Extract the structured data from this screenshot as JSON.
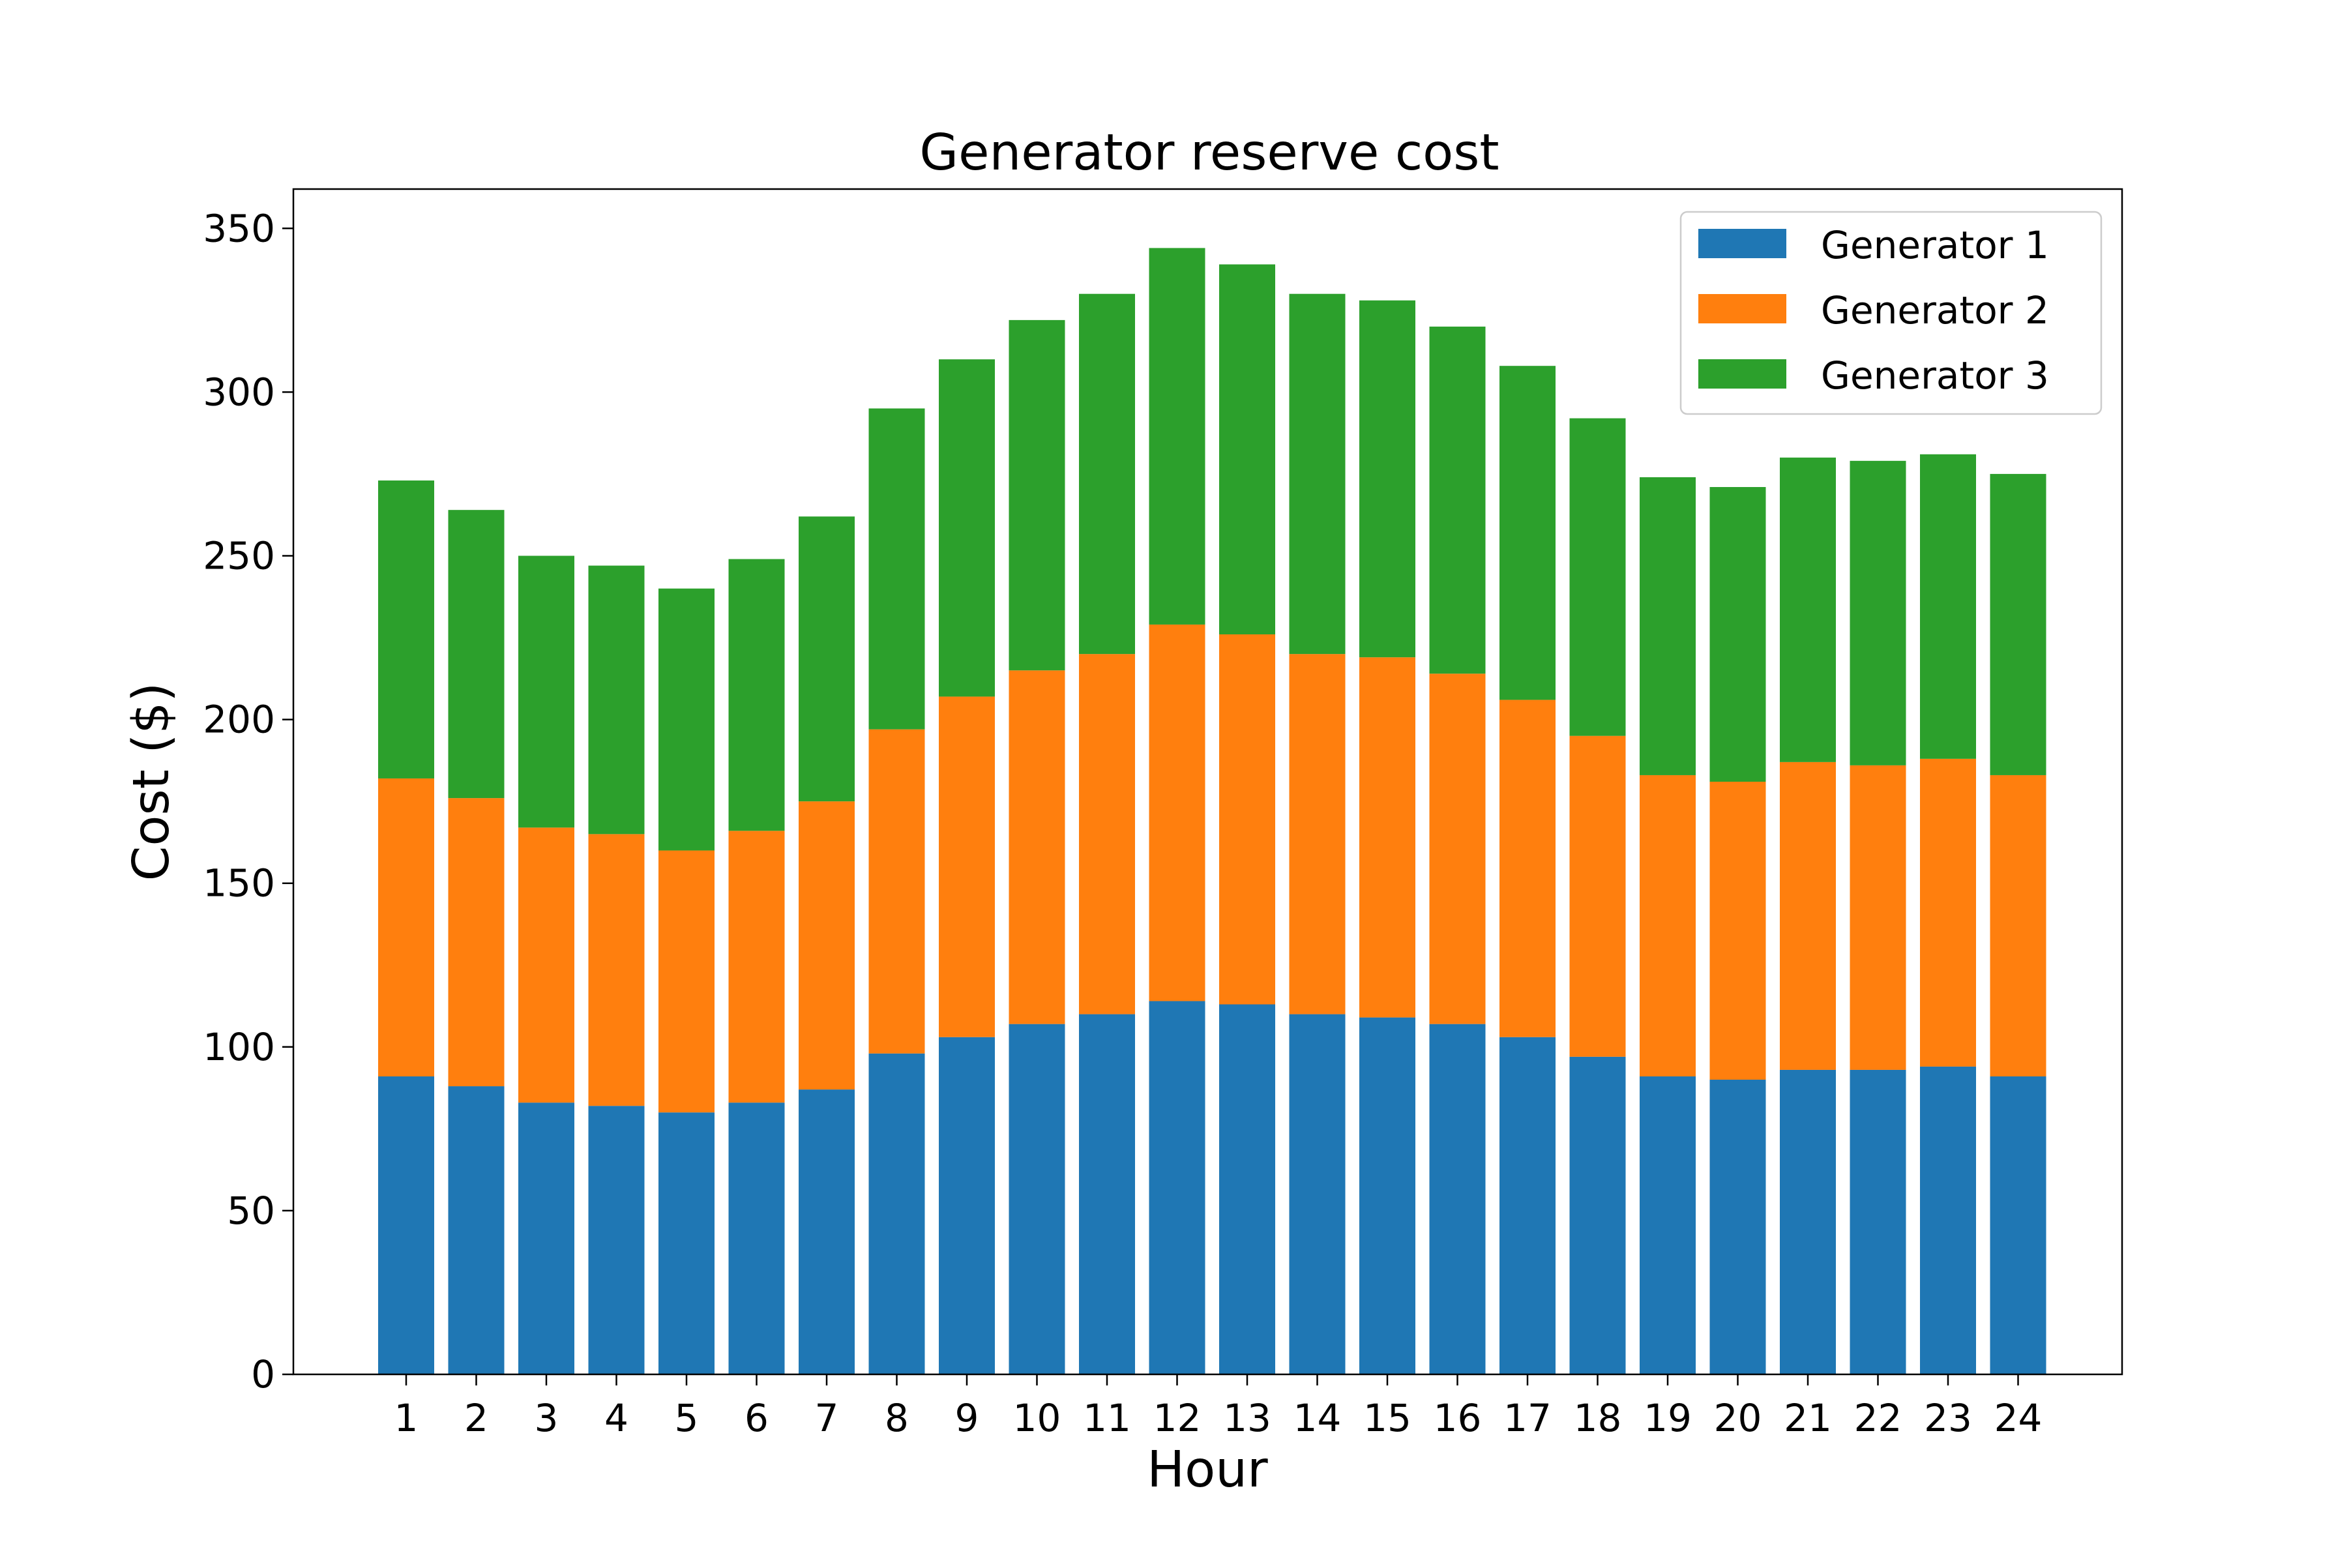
{
  "chart_data": {
    "type": "bar",
    "stacked": true,
    "title": "Generator reserve cost",
    "xlabel": "Hour",
    "ylabel": "Cost ($)",
    "categories": [
      "1",
      "2",
      "3",
      "4",
      "5",
      "6",
      "7",
      "8",
      "9",
      "10",
      "11",
      "12",
      "13",
      "14",
      "15",
      "16",
      "17",
      "18",
      "19",
      "20",
      "21",
      "22",
      "23",
      "24"
    ],
    "ylim": [
      0,
      362
    ],
    "yticks": [
      "0",
      "50",
      "100",
      "150",
      "200",
      "250",
      "300",
      "350"
    ],
    "grid": false,
    "legend_position": "top-right",
    "series": [
      {
        "name": "Generator 1",
        "color": "#1f77b4",
        "values": [
          91,
          88,
          83,
          82,
          80,
          83,
          87,
          98,
          103,
          107,
          110,
          114,
          113,
          110,
          109,
          107,
          103,
          97,
          91,
          90,
          93,
          93,
          94,
          91
        ]
      },
      {
        "name": "Generator 2",
        "color": "#ff7f0e",
        "values": [
          91,
          88,
          84,
          83,
          80,
          83,
          88,
          99,
          104,
          108,
          110,
          115,
          113,
          110,
          110,
          107,
          103,
          98,
          92,
          91,
          94,
          93,
          94,
          92
        ]
      },
      {
        "name": "Generator 3",
        "color": "#2ca02c",
        "values": [
          91,
          88,
          83,
          82,
          80,
          83,
          87,
          98,
          103,
          107,
          110,
          115,
          113,
          110,
          109,
          106,
          102,
          97,
          91,
          90,
          93,
          93,
          93,
          92
        ]
      }
    ]
  }
}
